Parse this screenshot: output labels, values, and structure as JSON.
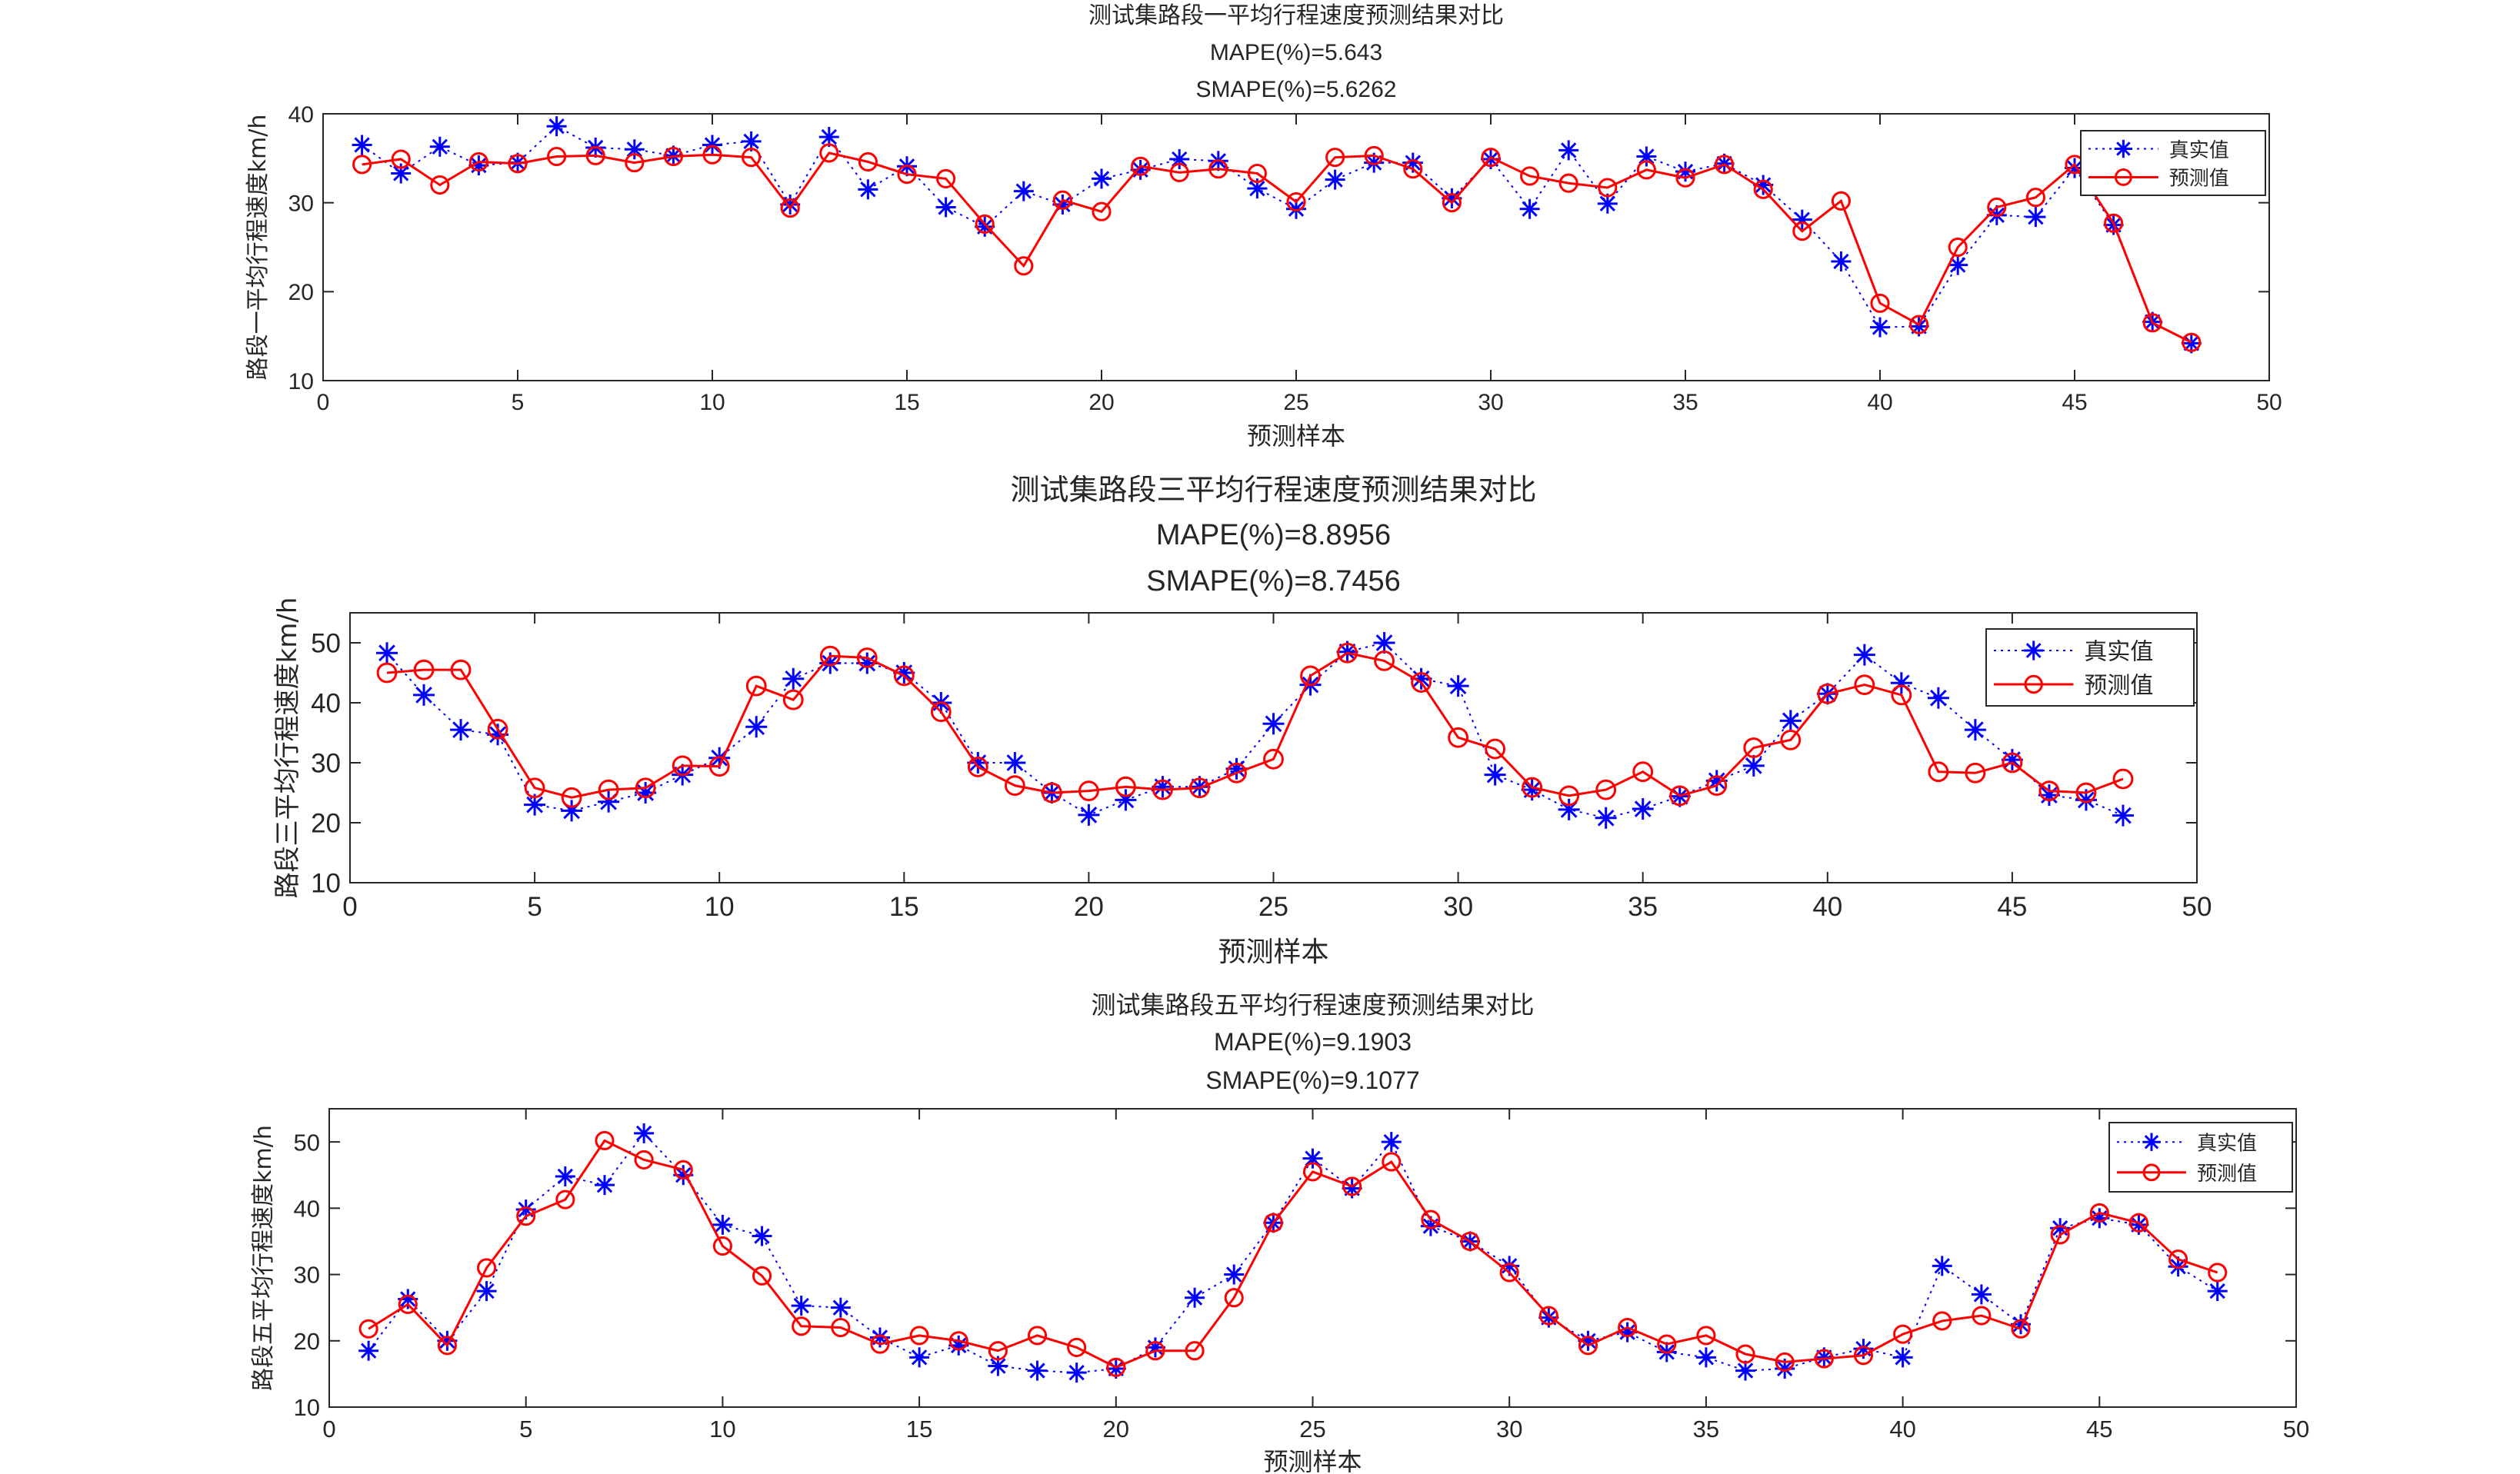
{
  "chart_data": [
    {
      "type": "line",
      "title": "测试集路段一平均行程速度预测结果对比",
      "subtitle_lines": [
        "MAPE(%)=5.643",
        "SMAPE(%)=5.6262"
      ],
      "xlabel": "预测样本",
      "ylabel": "路段一平均行程速度km/h",
      "xlim": [
        0,
        50
      ],
      "ylim": [
        10,
        40
      ],
      "xticks": [
        0,
        5,
        10,
        15,
        20,
        25,
        30,
        35,
        40,
        45,
        50
      ],
      "yticks": [
        10,
        20,
        30,
        40
      ],
      "grid": false,
      "legend": "top-right",
      "x": [
        1,
        2,
        3,
        4,
        5,
        6,
        7,
        8,
        9,
        10,
        11,
        12,
        13,
        14,
        15,
        16,
        17,
        18,
        19,
        20,
        21,
        22,
        23,
        24,
        25,
        26,
        27,
        28,
        29,
        30,
        31,
        32,
        33,
        34,
        35,
        36,
        37,
        38,
        39,
        40,
        41,
        42,
        43,
        44,
        45,
        46,
        47,
        48
      ],
      "series": [
        {
          "name": "真实值",
          "color": "#0000ff",
          "line_style": "dotted",
          "marker": "asterisk",
          "values": [
            36.5,
            33.3,
            36.3,
            34.2,
            34.5,
            38.6,
            36.2,
            36.0,
            35.3,
            36.5,
            36.9,
            29.8,
            37.4,
            31.5,
            34.1,
            29.5,
            27.3,
            31.3,
            29.8,
            32.7,
            33.7,
            34.9,
            34.7,
            31.6,
            29.3,
            32.6,
            34.5,
            34.5,
            30.5,
            34.9,
            29.3,
            35.9,
            29.9,
            35.2,
            33.5,
            34.4,
            32.0,
            28.1,
            23.4,
            16.0,
            16.1,
            23.0,
            28.6,
            28.4,
            33.9,
            27.5,
            16.6,
            14.2
          ]
        },
        {
          "name": "预测值",
          "color": "#ff0000",
          "line_style": "solid",
          "marker": "circle",
          "values": [
            34.3,
            34.9,
            32.0,
            34.6,
            34.4,
            35.2,
            35.3,
            34.5,
            35.2,
            35.4,
            35.1,
            29.4,
            35.6,
            34.6,
            33.2,
            32.7,
            27.6,
            22.9,
            30.3,
            29.0,
            34.1,
            33.4,
            33.8,
            33.3,
            30.1,
            35.1,
            35.3,
            33.8,
            30.0,
            35.1,
            33.0,
            32.2,
            31.7,
            33.7,
            32.8,
            34.3,
            31.5,
            26.8,
            30.2,
            18.7,
            16.3,
            25.0,
            29.5,
            30.6,
            34.3,
            27.7,
            16.5,
            14.3
          ]
        }
      ]
    },
    {
      "type": "line",
      "title": "测试集路段三平均行程速度预测结果对比",
      "subtitle_lines": [
        "MAPE(%)=8.8956",
        "SMAPE(%)=8.7456"
      ],
      "xlabel": "预测样本",
      "ylabel": "路段三平均行程速度km/h",
      "xlim": [
        0,
        50
      ],
      "ylim": [
        10,
        55
      ],
      "xticks": [
        0,
        5,
        10,
        15,
        20,
        25,
        30,
        35,
        40,
        45,
        50
      ],
      "yticks": [
        10,
        20,
        30,
        40,
        50
      ],
      "grid": false,
      "legend": "top-right",
      "x": [
        1,
        2,
        3,
        4,
        5,
        6,
        7,
        8,
        9,
        10,
        11,
        12,
        13,
        14,
        15,
        16,
        17,
        18,
        19,
        20,
        21,
        22,
        23,
        24,
        25,
        26,
        27,
        28,
        29,
        30,
        31,
        32,
        33,
        34,
        35,
        36,
        37,
        38,
        39,
        40,
        41,
        42,
        43,
        44,
        45,
        46,
        47,
        48
      ],
      "series": [
        {
          "name": "真实值",
          "color": "#0000ff",
          "line_style": "dotted",
          "marker": "asterisk",
          "values": [
            48.3,
            41.3,
            35.5,
            34.7,
            23.0,
            22.0,
            23.5,
            25.0,
            28.0,
            30.8,
            36.0,
            44.0,
            46.6,
            46.6,
            45.0,
            40.0,
            30.0,
            30.0,
            25.0,
            21.3,
            23.8,
            26.0,
            26.0,
            29.0,
            36.5,
            43.0,
            48.5,
            50.0,
            44.0,
            42.8,
            28.0,
            25.5,
            22.2,
            20.8,
            22.3,
            24.4,
            27.0,
            29.5,
            37.0,
            41.5,
            48.0,
            43.3,
            40.8,
            35.5,
            30.5,
            24.6,
            23.8,
            21.2
          ]
        },
        {
          "name": "预测值",
          "color": "#ff0000",
          "line_style": "solid",
          "marker": "circle",
          "values": [
            45.0,
            45.5,
            45.5,
            35.6,
            25.8,
            24.2,
            25.5,
            25.8,
            29.5,
            29.4,
            42.8,
            40.5,
            47.8,
            47.5,
            44.5,
            38.5,
            29.3,
            26.2,
            25.0,
            25.3,
            26.0,
            25.5,
            25.8,
            28.3,
            30.6,
            44.5,
            48.3,
            47.0,
            43.4,
            34.2,
            32.3,
            25.9,
            24.5,
            25.5,
            28.5,
            24.5,
            26.2,
            32.5,
            33.8,
            41.5,
            43.0,
            41.3,
            28.5,
            28.3,
            30.0,
            25.3,
            25.0,
            27.3
          ]
        }
      ]
    },
    {
      "type": "line",
      "title": "测试集路段五平均行程速度预测结果对比",
      "subtitle_lines": [
        "MAPE(%)=9.1903",
        "SMAPE(%)=9.1077"
      ],
      "xlabel": "预测样本",
      "ylabel": "路段五平均行程速度km/h",
      "xlim": [
        0,
        50
      ],
      "ylim": [
        10,
        55
      ],
      "xticks": [
        0,
        5,
        10,
        15,
        20,
        25,
        30,
        35,
        40,
        45,
        50
      ],
      "yticks": [
        10,
        20,
        30,
        40,
        50
      ],
      "grid": false,
      "legend": "top-right",
      "x": [
        1,
        2,
        3,
        4,
        5,
        6,
        7,
        8,
        9,
        10,
        11,
        12,
        13,
        14,
        15,
        16,
        17,
        18,
        19,
        20,
        21,
        22,
        23,
        24,
        25,
        26,
        27,
        28,
        29,
        30,
        31,
        32,
        33,
        34,
        35,
        36,
        37,
        38,
        39,
        40,
        41,
        42,
        43,
        44,
        45,
        46,
        47,
        48
      ],
      "series": [
        {
          "name": "真实值",
          "color": "#0000ff",
          "line_style": "dotted",
          "marker": "asterisk",
          "values": [
            18.5,
            26.3,
            20.0,
            27.5,
            39.8,
            44.8,
            43.5,
            51.3,
            45.0,
            37.5,
            35.8,
            25.3,
            25.0,
            20.5,
            17.5,
            19.3,
            16.2,
            15.5,
            15.2,
            15.8,
            19.0,
            26.5,
            30.0,
            37.8,
            47.5,
            43.0,
            50.0,
            37.3,
            35.0,
            31.3,
            23.5,
            20.0,
            21.3,
            18.3,
            17.5,
            15.5,
            15.8,
            17.5,
            18.8,
            17.5,
            31.3,
            27.0,
            22.5,
            37.0,
            38.5,
            37.5,
            31.2,
            27.5
          ]
        },
        {
          "name": "预测值",
          "color": "#ff0000",
          "line_style": "solid",
          "marker": "circle",
          "values": [
            21.8,
            25.5,
            19.3,
            31.0,
            38.8,
            41.3,
            50.2,
            47.3,
            45.8,
            34.3,
            29.8,
            22.2,
            22.0,
            19.5,
            20.8,
            20.0,
            18.5,
            20.8,
            19.0,
            16.0,
            18.5,
            18.5,
            26.5,
            37.8,
            45.5,
            43.3,
            47.0,
            38.3,
            35.0,
            30.3,
            23.8,
            19.3,
            22.0,
            19.5,
            20.8,
            18.0,
            16.8,
            17.3,
            17.8,
            21.0,
            23.0,
            23.8,
            21.8,
            36.0,
            39.3,
            37.8,
            32.3,
            30.3
          ]
        }
      ]
    }
  ]
}
